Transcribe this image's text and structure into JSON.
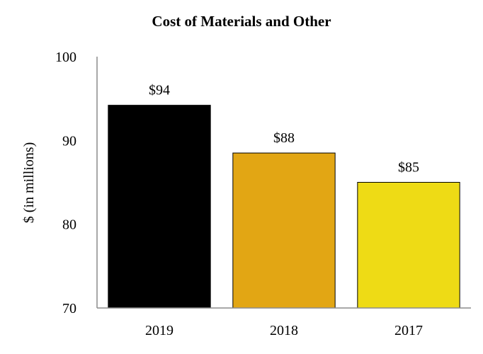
{
  "chart_data": {
    "type": "bar",
    "title": "Cost of Materials and Other",
    "xlabel": "",
    "ylabel": "$ (in millions)",
    "categories": [
      "2019",
      "2018",
      "2017"
    ],
    "values": [
      94.2,
      88.5,
      85.0
    ],
    "data_labels": [
      "$94",
      "$88",
      "$85"
    ],
    "colors": [
      "#000000",
      "#E2A614",
      "#EEDB15"
    ],
    "ylim": [
      70,
      100
    ],
    "yticks": [
      70,
      80,
      90,
      100
    ],
    "grid": false,
    "legend": "none"
  }
}
